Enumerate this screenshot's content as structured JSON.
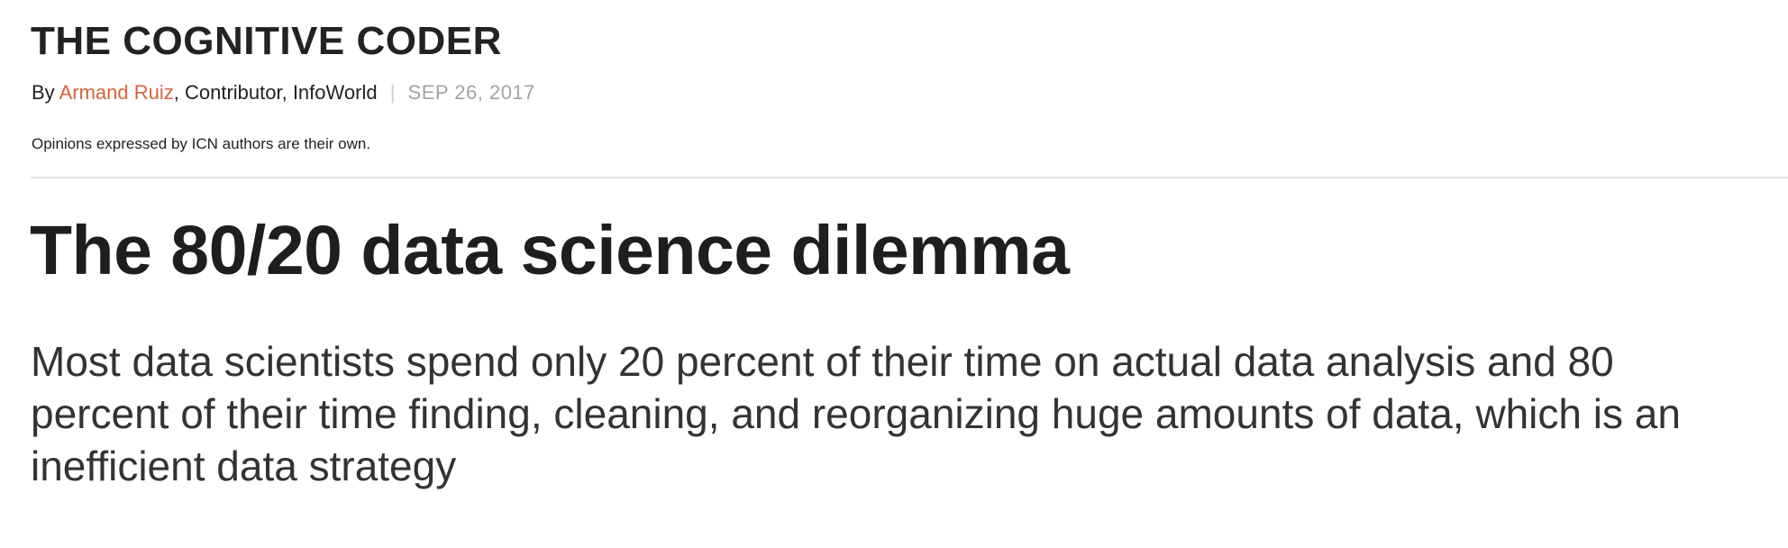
{
  "column": {
    "title": "THE COGNITIVE CODER"
  },
  "byline": {
    "prefix": "By",
    "author": "Armand Ruiz",
    "role": ", Contributor, InfoWorld",
    "separator": "|",
    "date": "SEP 26, 2017"
  },
  "disclaimer": "Opinions expressed by ICN authors are their own.",
  "article": {
    "headline": "The 80/20 data science dilemma",
    "deck": "Most data scientists spend only 20 percent of their time on actual data analysis and 80 percent of their time finding, cleaning, and reorganizing huge amounts of data, which is an inefficient data strategy"
  },
  "colors": {
    "author_link": "#d6623e",
    "date": "#a3a3a3",
    "divider": "#e2e2e2"
  }
}
